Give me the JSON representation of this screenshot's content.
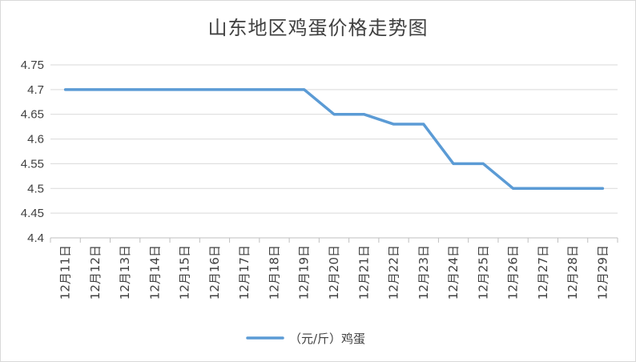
{
  "chart_data": {
    "type": "line",
    "title": "山东地区鸡蛋价格走势图",
    "xlabel": "",
    "ylabel": "",
    "categories": [
      "12月11日",
      "12月12日",
      "12月13日",
      "12月14日",
      "12月15日",
      "12月16日",
      "12月17日",
      "12月18日",
      "12月19日",
      "12月20日",
      "12月21日",
      "12月22日",
      "12月23日",
      "12月24日",
      "12月25日",
      "12月26日",
      "12月27日",
      "12月28日",
      "12月29日"
    ],
    "series": [
      {
        "name": "（元/斤）鸡蛋",
        "color": "#5b9bd5",
        "values": [
          4.7,
          4.7,
          4.7,
          4.7,
          4.7,
          4.7,
          4.7,
          4.7,
          4.7,
          4.65,
          4.65,
          4.63,
          4.63,
          4.55,
          4.55,
          4.5,
          4.5,
          4.5,
          4.5
        ]
      }
    ],
    "ylim": [
      4.4,
      4.75
    ],
    "yticks": [
      "4.4",
      "4.45",
      "4.5",
      "4.55",
      "4.6",
      "4.65",
      "4.7",
      "4.75"
    ],
    "grid": true,
    "legend": "bottom",
    "gridline_color": "#d9d9d9",
    "axis_color": "#bfbfbf"
  }
}
